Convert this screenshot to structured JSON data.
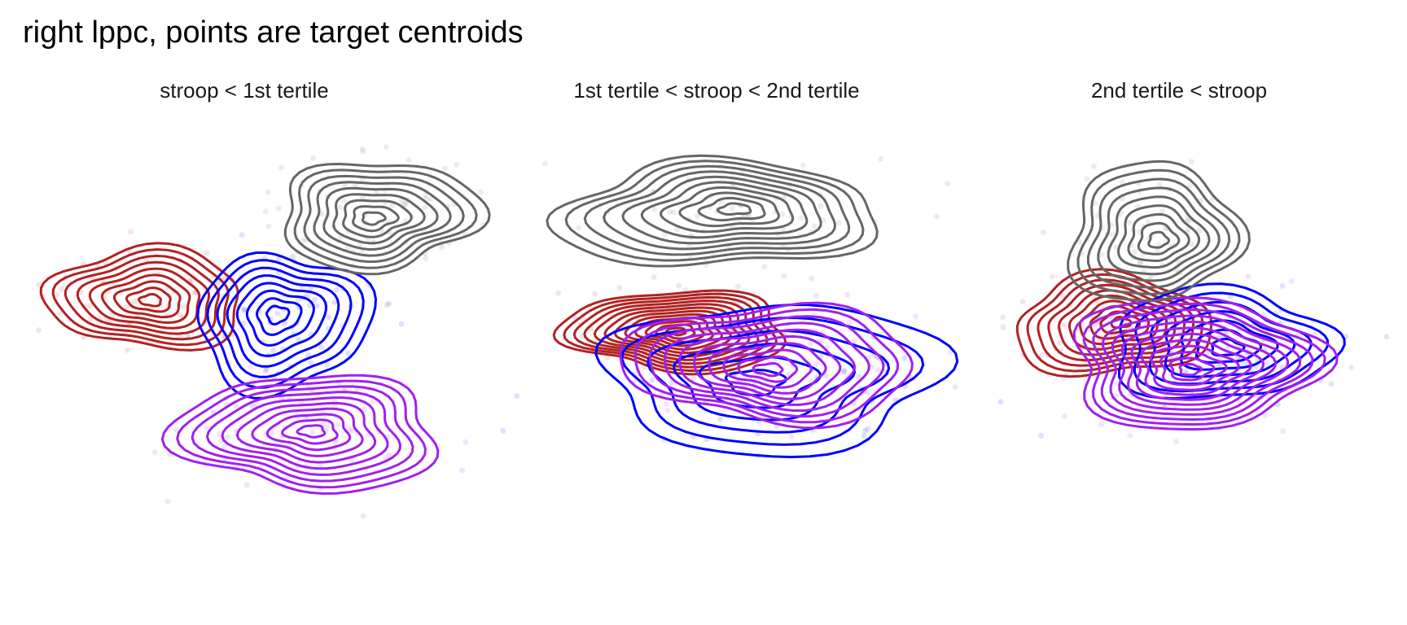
{
  "title": "right lppc, points are target centroids",
  "colors": {
    "red": "#b22222",
    "blue": "#0000ff",
    "purple": "#a020f0",
    "gray": "#666666"
  },
  "chart_data": {
    "type": "scatter",
    "title": "right lppc, points are target centroids",
    "xlabel": "",
    "ylabel": "",
    "grid": false,
    "legend": "none",
    "overlay": "2d density contours over semi-transparent points",
    "series_colors": [
      "#b22222",
      "#0000ff",
      "#a020f0",
      "#666666"
    ],
    "facets": [
      {
        "label": "stroop < 1st tertile",
        "groups": [
          {
            "color": "#b22222",
            "center": [
              0.09,
              0.62
            ],
            "spread": [
              0.035,
              0.05
            ],
            "levels": 9
          },
          {
            "color": "#0000ff",
            "center": [
              0.19,
              0.57
            ],
            "spread": [
              0.03,
              0.07
            ],
            "levels": 8
          },
          {
            "color": "#a020f0",
            "center": [
              0.21,
              0.33
            ],
            "spread": [
              0.045,
              0.06
            ],
            "levels": 10
          },
          {
            "color": "#666666",
            "center": [
              0.26,
              0.8
            ],
            "spread": [
              0.035,
              0.055
            ],
            "levels": 9
          }
        ]
      },
      {
        "label": "1st tertile < stroop < 2nd tertile",
        "groups": [
          {
            "color": "#b22222",
            "center": [
              0.48,
              0.55
            ],
            "spread": [
              0.04,
              0.04
            ],
            "levels": 12
          },
          {
            "color": "#0000ff",
            "center": [
              0.55,
              0.45
            ],
            "spread": [
              0.06,
              0.075
            ],
            "levels": 6
          },
          {
            "color": "#a020f0",
            "center": [
              0.55,
              0.48
            ],
            "spread": [
              0.05,
              0.06
            ],
            "levels": 10
          },
          {
            "color": "#666666",
            "center": [
              0.51,
              0.8
            ],
            "spread": [
              0.055,
              0.055
            ],
            "levels": 10
          }
        ]
      },
      {
        "label": "2nd tertile < stroop",
        "groups": [
          {
            "color": "#b22222",
            "center": [
              0.8,
              0.56
            ],
            "spread": [
              0.035,
              0.05
            ],
            "levels": 10
          },
          {
            "color": "#0000ff",
            "center": [
              0.88,
              0.52
            ],
            "spread": [
              0.04,
              0.055
            ],
            "levels": 7
          },
          {
            "color": "#a020f0",
            "center": [
              0.86,
              0.48
            ],
            "spread": [
              0.045,
              0.065
            ],
            "levels": 12
          },
          {
            "color": "#666666",
            "center": [
              0.83,
              0.76
            ],
            "spread": [
              0.03,
              0.07
            ],
            "levels": 9
          }
        ]
      }
    ]
  }
}
